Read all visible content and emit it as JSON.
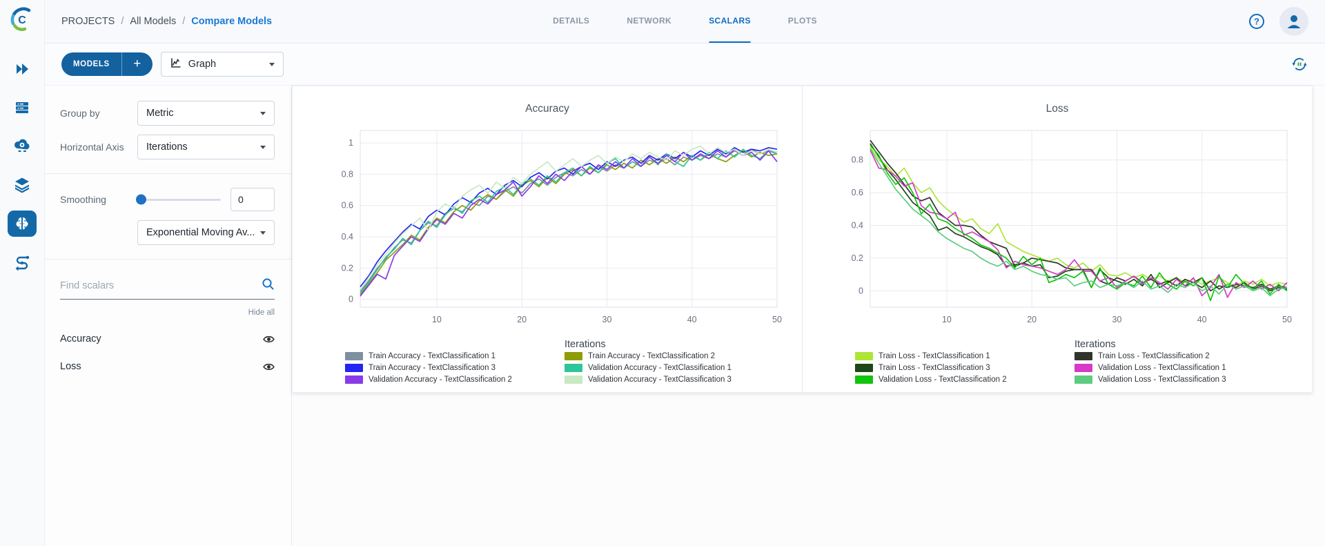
{
  "header": {
    "breadcrumb": [
      "PROJECTS",
      "All Models",
      "Compare Models"
    ],
    "breadcrumb_separator": "/",
    "tabs": [
      {
        "label": "DETAILS"
      },
      {
        "label": "NETWORK"
      },
      {
        "label": "SCALARS",
        "active": true
      },
      {
        "label": "PLOTS"
      }
    ]
  },
  "sidebar": {
    "icons": [
      "double-chevron-right-icon",
      "queues-icon",
      "workers-cloud-icon",
      "datasets-layers-icon",
      "models-brain-icon",
      "pipelines-icon"
    ],
    "active_icon": "models-brain-icon"
  },
  "toolbar": {
    "models_label": "MODELS",
    "add_label": "+",
    "view_selector_value": "Graph"
  },
  "settings": {
    "group_by_label": "Group by",
    "group_by_value": "Metric",
    "horizontal_axis_label": "Horizontal Axis",
    "horizontal_axis_value": "Iterations",
    "smoothing_label": "Smoothing",
    "smoothing_value": "0",
    "smoothing_type_value": "Exponential Moving Av...",
    "search_placeholder": "Find scalars",
    "hide_all_label": "Hide all",
    "metrics": [
      {
        "name": "Accuracy",
        "visible": true
      },
      {
        "name": "Loss",
        "visible": true
      }
    ]
  },
  "colors": {
    "accent_blue": "#13619f",
    "link_blue": "#1a7ad9",
    "active_tab": "#0e6cc2"
  },
  "chart_data": [
    {
      "type": "line",
      "title": "Accuracy",
      "xlabel": "Iterations",
      "ylabel": "",
      "xlim": [
        1,
        50
      ],
      "ylim": [
        -0.05,
        1.08
      ],
      "x_ticks": [
        10,
        20,
        30,
        40,
        50
      ],
      "y_ticks": [
        0,
        0.2,
        0.4,
        0.6,
        0.8,
        1
      ],
      "grid": true,
      "legend_position": "bottom",
      "x": [
        1,
        2,
        3,
        4,
        5,
        6,
        7,
        8,
        9,
        10,
        11,
        12,
        13,
        14,
        15,
        16,
        17,
        18,
        19,
        20,
        21,
        22,
        23,
        24,
        25,
        26,
        27,
        28,
        29,
        30,
        31,
        32,
        33,
        34,
        35,
        36,
        37,
        38,
        39,
        40,
        41,
        42,
        43,
        44,
        45,
        46,
        47,
        48,
        49,
        50
      ],
      "series": [
        {
          "name": "Train Accuracy - TextClassification 1",
          "color": "#7d8fa0",
          "values": [
            0.05,
            0.12,
            0.2,
            0.26,
            0.33,
            0.38,
            0.36,
            0.44,
            0.49,
            0.47,
            0.55,
            0.58,
            0.56,
            0.62,
            0.6,
            0.66,
            0.64,
            0.69,
            0.72,
            0.68,
            0.74,
            0.77,
            0.73,
            0.78,
            0.81,
            0.79,
            0.83,
            0.8,
            0.85,
            0.82,
            0.86,
            0.84,
            0.88,
            0.85,
            0.89,
            0.87,
            0.9,
            0.86,
            0.91,
            0.89,
            0.92,
            0.9,
            0.93,
            0.91,
            0.95,
            0.92,
            0.96,
            0.93,
            0.95,
            0.94
          ]
        },
        {
          "name": "Train Accuracy - TextClassification 2",
          "color": "#8e9c07",
          "values": [
            0.03,
            0.1,
            0.17,
            0.25,
            0.3,
            0.35,
            0.41,
            0.38,
            0.46,
            0.52,
            0.49,
            0.56,
            0.6,
            0.57,
            0.63,
            0.67,
            0.64,
            0.7,
            0.66,
            0.73,
            0.76,
            0.72,
            0.78,
            0.74,
            0.8,
            0.83,
            0.79,
            0.84,
            0.81,
            0.86,
            0.83,
            0.87,
            0.84,
            0.89,
            0.86,
            0.9,
            0.87,
            0.91,
            0.88,
            0.92,
            0.89,
            0.93,
            0.9,
            0.88,
            0.92,
            0.95,
            0.91,
            0.94,
            0.92,
            0.93
          ]
        },
        {
          "name": "Train Accuracy - TextClassification 3",
          "color": "#2425f2",
          "values": [
            0.08,
            0.15,
            0.24,
            0.31,
            0.37,
            0.43,
            0.48,
            0.45,
            0.53,
            0.57,
            0.54,
            0.61,
            0.65,
            0.62,
            0.68,
            0.71,
            0.67,
            0.73,
            0.76,
            0.72,
            0.78,
            0.81,
            0.77,
            0.82,
            0.84,
            0.8,
            0.85,
            0.87,
            0.83,
            0.88,
            0.85,
            0.89,
            0.91,
            0.87,
            0.92,
            0.89,
            0.93,
            0.9,
            0.94,
            0.91,
            0.95,
            0.92,
            0.96,
            0.93,
            0.97,
            0.94,
            0.96,
            0.95,
            0.97,
            0.96
          ]
        },
        {
          "name": "Validation Accuracy - TextClassification 1",
          "color": "#2fc49a",
          "values": [
            0.04,
            0.11,
            0.19,
            0.27,
            0.32,
            0.39,
            0.35,
            0.44,
            0.5,
            0.46,
            0.54,
            0.59,
            0.55,
            0.63,
            0.66,
            0.62,
            0.69,
            0.72,
            0.67,
            0.74,
            0.77,
            0.73,
            0.79,
            0.75,
            0.81,
            0.84,
            0.79,
            0.85,
            0.81,
            0.87,
            0.9,
            0.84,
            0.88,
            0.85,
            0.91,
            0.86,
            0.93,
            0.88,
            0.85,
            0.92,
            0.89,
            0.94,
            0.9,
            0.95,
            0.91,
            0.96,
            0.92,
            0.9,
            0.95,
            0.93
          ]
        },
        {
          "name": "Validation Accuracy - TextClassification 2",
          "color": "#8a3ae8",
          "values": [
            0.02,
            0.09,
            0.16,
            0.13,
            0.28,
            0.34,
            0.4,
            0.37,
            0.45,
            0.51,
            0.48,
            0.55,
            0.52,
            0.6,
            0.64,
            0.61,
            0.67,
            0.7,
            0.75,
            0.66,
            0.72,
            0.79,
            0.74,
            0.8,
            0.76,
            0.82,
            0.85,
            0.8,
            0.86,
            0.83,
            0.88,
            0.84,
            0.9,
            0.85,
            0.91,
            0.87,
            0.92,
            0.88,
            0.94,
            0.89,
            0.93,
            0.9,
            0.95,
            0.91,
            0.96,
            0.92,
            0.94,
            0.89,
            0.95,
            0.88
          ]
        },
        {
          "name": "Validation Accuracy - TextClassification 3",
          "color": "#c8e9c2",
          "values": [
            0.06,
            0.14,
            0.22,
            0.29,
            0.36,
            0.42,
            0.47,
            0.52,
            0.44,
            0.56,
            0.61,
            0.58,
            0.66,
            0.7,
            0.73,
            0.68,
            0.75,
            0.71,
            0.78,
            0.74,
            0.8,
            0.84,
            0.88,
            0.82,
            0.86,
            0.9,
            0.85,
            0.89,
            0.92,
            0.87,
            0.91,
            0.88,
            0.93,
            0.9,
            0.94,
            0.91,
            0.89,
            0.95,
            0.92,
            0.96,
            0.98,
            0.93,
            0.97,
            0.94,
            0.96,
            0.92,
            0.95,
            0.93,
            0.96,
            0.94
          ]
        }
      ]
    },
    {
      "type": "line",
      "title": "Loss",
      "xlabel": "Iterations",
      "ylabel": "",
      "xlim": [
        1,
        50
      ],
      "ylim": [
        -0.1,
        0.98
      ],
      "x_ticks": [
        10,
        20,
        30,
        40,
        50
      ],
      "y_ticks": [
        0,
        0.2,
        0.4,
        0.6,
        0.8
      ],
      "grid": true,
      "legend_position": "bottom",
      "x": [
        1,
        2,
        3,
        4,
        5,
        6,
        7,
        8,
        9,
        10,
        11,
        12,
        13,
        14,
        15,
        16,
        17,
        18,
        19,
        20,
        21,
        22,
        23,
        24,
        25,
        26,
        27,
        28,
        29,
        30,
        31,
        32,
        33,
        34,
        35,
        36,
        37,
        38,
        39,
        40,
        41,
        42,
        43,
        44,
        45,
        46,
        47,
        48,
        49,
        50
      ],
      "series": [
        {
          "name": "Train Loss - TextClassification 1",
          "color": "#aee637",
          "values": [
            0.88,
            0.8,
            0.76,
            0.7,
            0.75,
            0.66,
            0.6,
            0.63,
            0.55,
            0.5,
            0.46,
            0.42,
            0.44,
            0.38,
            0.35,
            0.41,
            0.3,
            0.27,
            0.24,
            0.22,
            0.2,
            0.18,
            0.2,
            0.16,
            0.14,
            0.17,
            0.12,
            0.16,
            0.1,
            0.09,
            0.11,
            0.08,
            0.1,
            0.07,
            0.09,
            0.06,
            0.08,
            0.05,
            0.07,
            0.04,
            0.06,
            0.08,
            0.05,
            0.03,
            0.06,
            0.04,
            0.07,
            0.03,
            0.05,
            0.04
          ]
        },
        {
          "name": "Train Loss - TextClassification 2",
          "color": "#32332c",
          "values": [
            0.92,
            0.85,
            0.78,
            0.72,
            0.65,
            0.58,
            0.55,
            0.57,
            0.48,
            0.44,
            0.4,
            0.4,
            0.39,
            0.34,
            0.3,
            0.28,
            0.26,
            0.15,
            0.17,
            0.2,
            0.19,
            0.18,
            0.17,
            0.14,
            0.13,
            0.13,
            0.13,
            0.06,
            0.04,
            0.08,
            0.06,
            0.09,
            0.05,
            0.07,
            0.04,
            0.06,
            0.03,
            0.07,
            0.05,
            0.08,
            0.0,
            0.03,
            0.02,
            0.04,
            0.03,
            0.02,
            0.04,
            0.01,
            0.03,
            0.02
          ]
        },
        {
          "name": "Train Loss - TextClassification 3",
          "color": "#1d4716",
          "values": [
            0.9,
            0.82,
            0.74,
            0.68,
            0.61,
            0.54,
            0.5,
            0.46,
            0.37,
            0.39,
            0.35,
            0.33,
            0.3,
            0.27,
            0.25,
            0.22,
            0.15,
            0.16,
            0.17,
            0.15,
            0.16,
            0.08,
            0.09,
            0.12,
            0.13,
            0.13,
            0.02,
            0.13,
            0.08,
            0.06,
            0.04,
            0.07,
            0.03,
            0.1,
            0.02,
            0.05,
            0.08,
            0.03,
            0.05,
            0.02,
            0.06,
            0.01,
            0.04,
            0.02,
            0.05,
            0.01,
            0.03,
            0.0,
            0.02,
            0.01
          ]
        },
        {
          "name": "Validation Loss - TextClassification 1",
          "color": "#d53bc8",
          "values": [
            0.86,
            0.75,
            0.74,
            0.7,
            0.64,
            0.66,
            0.52,
            0.48,
            0.47,
            0.44,
            0.48,
            0.34,
            0.36,
            0.33,
            0.3,
            0.25,
            0.14,
            0.18,
            0.16,
            0.15,
            0.14,
            0.12,
            0.1,
            0.13,
            0.19,
            0.12,
            0.12,
            0.06,
            0.08,
            0.02,
            0.06,
            0.09,
            0.04,
            0.08,
            0.05,
            0.01,
            0.07,
            0.03,
            0.08,
            -0.03,
            0.02,
            0.1,
            -0.04,
            0.05,
            0.02,
            0.06,
            0.01,
            0.04,
            0.0,
            0.05
          ]
        },
        {
          "name": "Validation Loss - TextClassification 2",
          "color": "#11c40e",
          "values": [
            0.89,
            0.83,
            0.72,
            0.65,
            0.69,
            0.6,
            0.47,
            0.53,
            0.44,
            0.42,
            0.38,
            0.35,
            0.32,
            0.28,
            0.26,
            0.23,
            0.2,
            0.14,
            0.21,
            0.16,
            0.2,
            0.05,
            0.07,
            0.1,
            0.08,
            0.12,
            0.02,
            0.14,
            0.04,
            0.01,
            0.05,
            0.03,
            0.09,
            0.02,
            0.11,
            0.04,
            0.01,
            0.06,
            0.03,
            0.08,
            -0.06,
            0.09,
            0.02,
            0.1,
            0.04,
            0.01,
            0.06,
            -0.02,
            0.04,
            0.0
          ]
        },
        {
          "name": "Validation Loss - TextClassification 3",
          "color": "#5ecc7f",
          "values": [
            0.87,
            0.78,
            0.7,
            0.62,
            0.56,
            0.5,
            0.46,
            0.42,
            0.36,
            0.32,
            0.29,
            0.26,
            0.24,
            0.2,
            0.17,
            0.15,
            0.18,
            0.13,
            0.15,
            0.12,
            0.1,
            0.09,
            0.07,
            0.08,
            0.03,
            0.05,
            0.06,
            0.02,
            0.04,
            0.03,
            0.05,
            0.02,
            0.06,
            0.01,
            0.03,
            -0.01,
            0.04,
            0.02,
            0.05,
            0.0,
            0.03,
            -0.02,
            0.04,
            0.01,
            0.03,
            0.0,
            0.02,
            -0.03,
            0.01,
            0.02
          ]
        }
      ]
    }
  ]
}
